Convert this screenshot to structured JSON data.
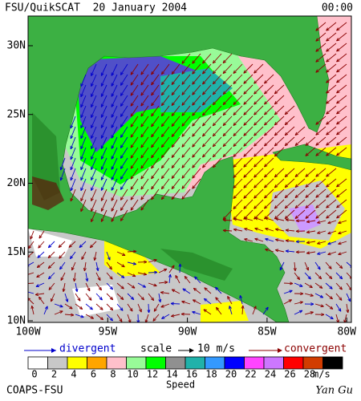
{
  "header": {
    "title": "FSU/QuikSCAT  20 January 2004",
    "time": "00:00"
  },
  "map": {
    "lat_labels": [
      "30N",
      "25N",
      "20N",
      "15N",
      "10N"
    ],
    "lon_labels": [
      "100W",
      "95W",
      "90W",
      "85W",
      "80W"
    ]
  },
  "legend": {
    "divergent": "divergent",
    "scale": "scale",
    "scale_value": "10 m/s",
    "convergent": "convergent"
  },
  "color_bar": {
    "labels": [
      0,
      2,
      4,
      6,
      8,
      10,
      12,
      14,
      16,
      18,
      20,
      22,
      24,
      26,
      28
    ],
    "colors": [
      "#ffffff",
      "#c8c8c8",
      "#ffff00",
      "#ffa500",
      "#ffc0cb",
      "#98fb98",
      "#00ff00",
      "#909090",
      "#20b2aa",
      "#3399ff",
      "#0000ff",
      "#ff44ff",
      "#cc77ff",
      "#ff0000",
      "#d23c00",
      "#000000"
    ],
    "unit": "m/s",
    "title": "Speed"
  },
  "footer": {
    "left": "COAPS-FSU",
    "right": "Yan Gu"
  }
}
